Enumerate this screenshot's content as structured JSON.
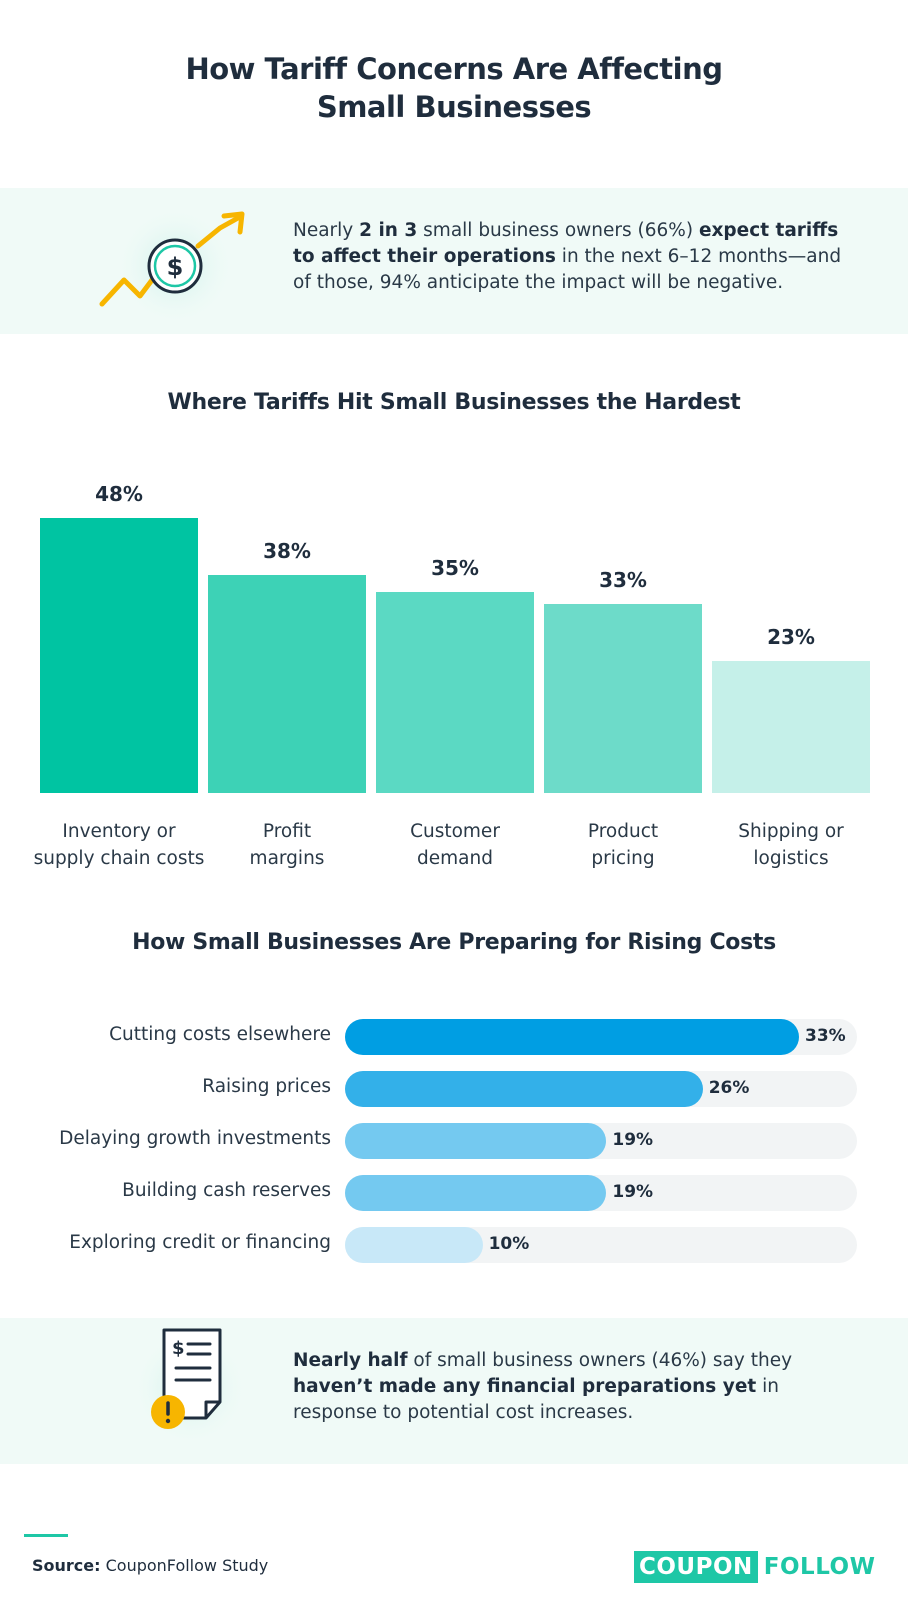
{
  "title_line1": "How Tariff Concerns Are Affecting",
  "title_line2": "Small Businesses",
  "callout_top": {
    "p1": "Nearly ",
    "b1": "2 in 3",
    "p2": " small business owners (66%) ",
    "b2": "expect tariffs to affect their operations",
    "p3": " in the next 6–12 months—and of those, 94% anticipate the impact will be negative."
  },
  "callout_bottom": {
    "b1": "Nearly half",
    "p1": " of small business owners (46%) say they ",
    "b2": "haven’t made any financial preparations yet",
    "p2": " in response to potential cost increases."
  },
  "source_label": "Source:",
  "source_text": " CouponFollow Study",
  "logo": {
    "part1": "COUPON",
    "part2": "FOLLOW"
  },
  "colors": {
    "teal_dark": "#00c4a2",
    "teal_light": "#c5f0e9",
    "blue_dark": "#009ee3",
    "blue_light": "#c8e8f8",
    "track": "#f2f4f5"
  },
  "chart_data": [
    {
      "type": "bar",
      "title": "Where Tariffs Hit Small Businesses the Hardest",
      "categories": [
        [
          "Inventory or",
          "supply chain costs"
        ],
        [
          "Profit",
          "margins"
        ],
        [
          "Customer",
          "demand"
        ],
        [
          "Product",
          "pricing"
        ],
        [
          "Shipping or",
          "logistics"
        ]
      ],
      "values": [
        48,
        38,
        35,
        33,
        23
      ],
      "value_labels": [
        "48%",
        "38%",
        "35%",
        "33%",
        "23%"
      ],
      "colors": [
        "#00c4a2",
        "#3dd2b6",
        "#5bd9c3",
        "#6ddbc9",
        "#c5f0e9"
      ],
      "ylim": [
        0,
        48
      ]
    },
    {
      "type": "bar",
      "orientation": "horizontal",
      "title": "How Small Businesses Are Preparing for Rising Costs",
      "categories": [
        "Cutting costs elsewhere",
        "Raising prices",
        "Delaying growth investments",
        "Building cash reserves",
        "Exploring credit or financing"
      ],
      "values": [
        33,
        26,
        19,
        19,
        10
      ],
      "value_labels": [
        "33%",
        "26%",
        "19%",
        "19%",
        "10%"
      ],
      "colors": [
        "#009ee3",
        "#33b0e9",
        "#74c9f0",
        "#74c9f0",
        "#c8e8f8"
      ],
      "xlim": [
        0,
        33
      ]
    }
  ]
}
